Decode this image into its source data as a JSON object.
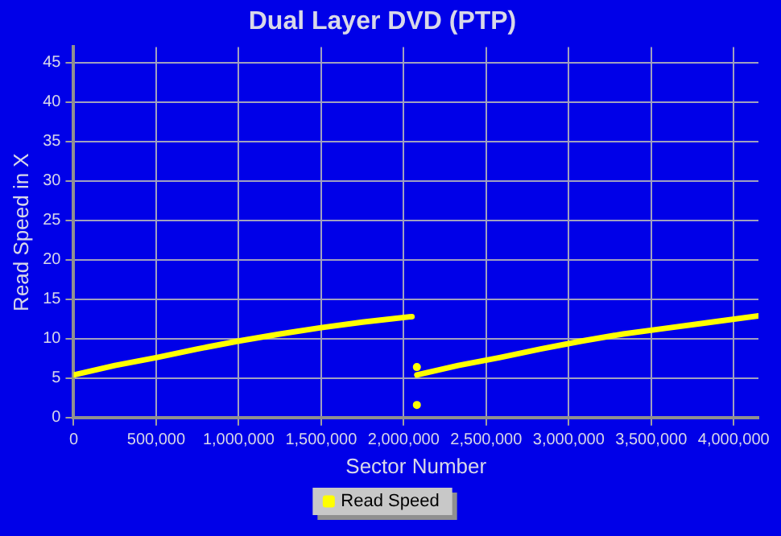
{
  "chart_data": {
    "type": "line",
    "title": "Dual Layer DVD (PTP)",
    "xlabel": "Sector Number",
    "ylabel": "Read Speed in X",
    "xlim": [
      0,
      4150000
    ],
    "xticks": [
      {
        "value": 0,
        "label": "0"
      },
      {
        "value": 500000,
        "label": "500,000"
      },
      {
        "value": 1000000,
        "label": "1,000,000"
      },
      {
        "value": 1500000,
        "label": "1,500,000"
      },
      {
        "value": 2000000,
        "label": "2,000,000"
      },
      {
        "value": 2500000,
        "label": "2,500,000"
      },
      {
        "value": 3000000,
        "label": "3,000,000"
      },
      {
        "value": 3500000,
        "label": "3,500,000"
      },
      {
        "value": 4000000,
        "label": "4,000,000"
      }
    ],
    "ylim": [
      0,
      47
    ],
    "yticks": [
      0,
      5,
      10,
      15,
      20,
      25,
      30,
      35,
      40,
      45
    ],
    "grid": true,
    "legend": "bottom",
    "line_style": "solid",
    "series": [
      {
        "name": "Read Speed",
        "color": "#ffff00",
        "x": [
          0,
          250000,
          500000,
          750000,
          1000000,
          1250000,
          1500000,
          1750000,
          2050000,
          2070000,
          2080000,
          2330000,
          2580000,
          2830000,
          3080000,
          3330000,
          3580000,
          3830000,
          4150000
        ],
        "values": [
          5.4,
          6.6,
          7.6,
          8.7,
          9.7,
          10.6,
          11.4,
          12.1,
          12.8,
          null,
          5.4,
          6.6,
          7.6,
          8.7,
          9.7,
          10.6,
          11.3,
          12.0,
          12.9
        ]
      },
      {
        "type": "scatter",
        "color": "#ffff00",
        "x": [
          2080000,
          2080000
        ],
        "values": [
          6.4,
          1.6
        ]
      }
    ]
  }
}
